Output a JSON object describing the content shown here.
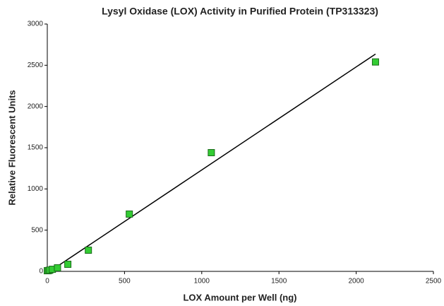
{
  "chart_data": {
    "type": "scatter",
    "title": "Lysyl Oxidase (LOX) Activity in Purified Protein (TP313323)",
    "x_label": "LOX Amount per Well (ng)",
    "y_label": "Relative Fluorescent Units",
    "series": [
      {
        "color": "#33cc33",
        "x": [
          0,
          8,
          16,
          33,
          66,
          133,
          266,
          531,
          1062,
          2125
        ],
        "values": [
          8,
          10,
          15,
          25,
          43,
          86,
          257,
          695,
          1440,
          2540
        ]
      }
    ],
    "trendline": {
      "color": "#000000",
      "x": [
        0,
        2125
      ],
      "values": [
        -20,
        2636
      ]
    },
    "xlim": [
      0,
      2500
    ],
    "xticks": [
      0,
      500,
      1000,
      1500,
      2000,
      2500
    ],
    "ylim": [
      0,
      3000
    ],
    "yticks": [
      0,
      500,
      1000,
      1500,
      2000,
      2500,
      3000
    ],
    "grid": false
  }
}
